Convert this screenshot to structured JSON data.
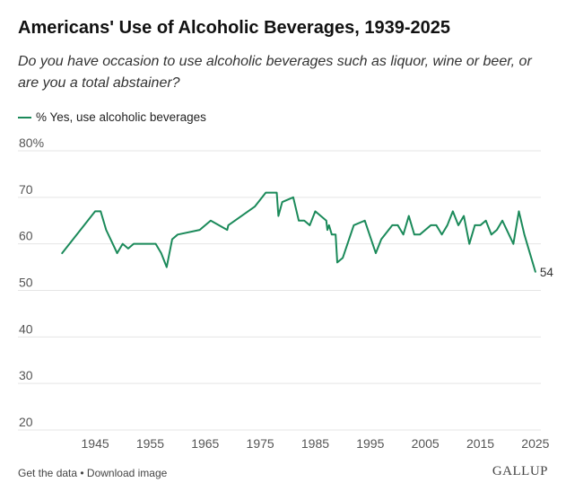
{
  "header": {
    "title": "Americans' Use of Alcoholic Beverages, 1939-2025",
    "subtitle": "Do you have occasion to use alcoholic beverages such as liquor, wine or beer, or are you a total abstainer?"
  },
  "legend": {
    "label": "% Yes, use alcoholic beverages"
  },
  "colors": {
    "series": "#1b8a5a",
    "grid": "#e5e5e5",
    "text": "#555555"
  },
  "footer": {
    "get_data": "Get the data",
    "separator": " • ",
    "download": "Download image",
    "brand": "GALLUP"
  },
  "chart_data": {
    "type": "line",
    "title": "Americans' Use of Alcoholic Beverages, 1939-2025",
    "xlabel": "",
    "ylabel": "",
    "xlim": [
      1937,
      2026
    ],
    "ylim": [
      20,
      80
    ],
    "y_unit_suffix_top": "%",
    "xticks": [
      1945,
      1955,
      1965,
      1975,
      1985,
      1995,
      2005,
      2015,
      2025
    ],
    "yticks": [
      20,
      30,
      40,
      50,
      60,
      70,
      80
    ],
    "grid": true,
    "legend_position": "top-left",
    "end_label": "54",
    "series": [
      {
        "name": "% Yes, use alcoholic beverages",
        "x": [
          1939,
          1945,
          1946,
          1947,
          1949,
          1950,
          1951,
          1952,
          1956,
          1957,
          1958,
          1959,
          1960,
          1964,
          1966,
          1969,
          1969.2,
          1974,
          1976,
          1978,
          1978.3,
          1979,
          1981,
          1982,
          1983,
          1984,
          1985,
          1987,
          1987.2,
          1987.5,
          1988,
          1988.7,
          1989,
          1990,
          1992,
          1994,
          1996,
          1997,
          1999,
          2000,
          2001,
          2002,
          2003,
          2004,
          2006,
          2007,
          2008,
          2009,
          2010,
          2011,
          2012,
          2013,
          2014,
          2015,
          2016,
          2017,
          2018,
          2019,
          2021,
          2022,
          2023,
          2024,
          2025
        ],
        "values": [
          58,
          67,
          67,
          63,
          58,
          60,
          59,
          60,
          60,
          58,
          55,
          61,
          62,
          63,
          65,
          63,
          64,
          68,
          71,
          71,
          66,
          69,
          70,
          65,
          65,
          64,
          67,
          65,
          63,
          64,
          62,
          62,
          56,
          57,
          64,
          65,
          58,
          61,
          64,
          64,
          62,
          66,
          62,
          62,
          64,
          64,
          62,
          64,
          67,
          64,
          66,
          60,
          64,
          64,
          65,
          62,
          63,
          65,
          60,
          67,
          62,
          58,
          54
        ]
      }
    ]
  }
}
